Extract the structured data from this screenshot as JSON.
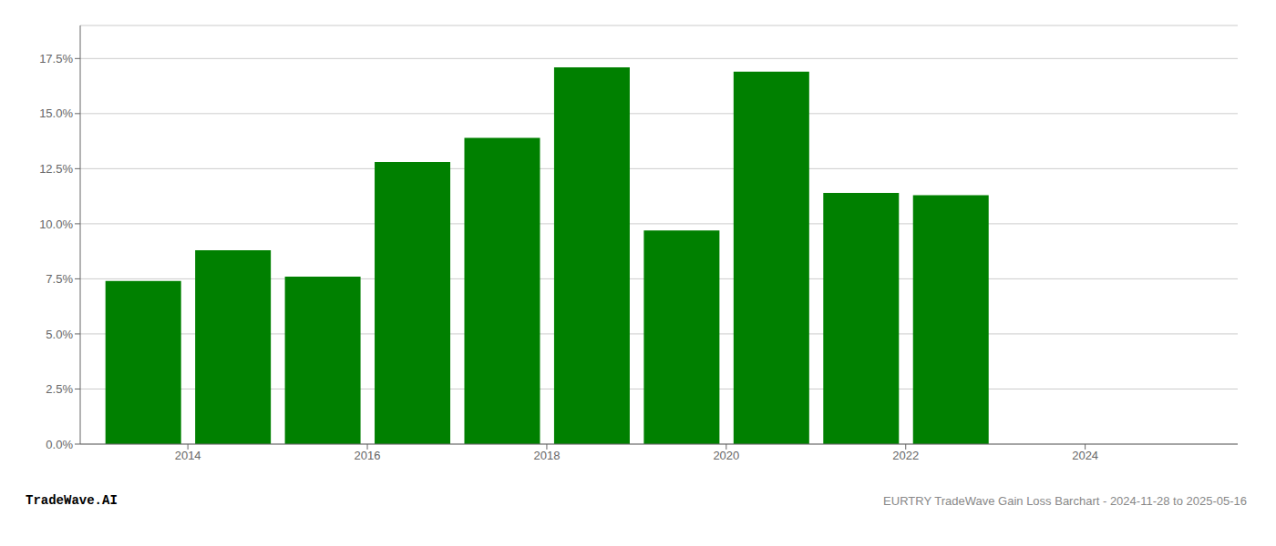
{
  "chart_data": {
    "type": "bar",
    "x": [
      2013,
      2014,
      2015,
      2016,
      2017,
      2018,
      2019,
      2020,
      2021,
      2022
    ],
    "values": [
      0.074,
      0.088,
      0.076,
      0.128,
      0.139,
      0.171,
      0.097,
      0.169,
      0.114,
      0.113
    ],
    "color": "#008000",
    "xlim": [
      2012.3,
      2025.2
    ],
    "xticks": [
      {
        "value": 2013.5,
        "label": "2014"
      },
      {
        "value": 2015.5,
        "label": "2016"
      },
      {
        "value": 2017.5,
        "label": "2018"
      },
      {
        "value": 2019.5,
        "label": "2020"
      },
      {
        "value": 2021.5,
        "label": "2022"
      },
      {
        "value": 2023.5,
        "label": "2024"
      }
    ],
    "ylim": [
      0,
      0.19
    ],
    "yticks": [
      {
        "value": 0.0,
        "label": "0.0%"
      },
      {
        "value": 0.025,
        "label": "2.5%"
      },
      {
        "value": 0.05,
        "label": "5.0%"
      },
      {
        "value": 0.075,
        "label": "7.5%"
      },
      {
        "value": 0.1,
        "label": "10.0%"
      },
      {
        "value": 0.125,
        "label": "12.5%"
      },
      {
        "value": 0.15,
        "label": "15.0%"
      },
      {
        "value": 0.175,
        "label": "17.5%"
      }
    ],
    "grid": true,
    "annotations": [
      "TradeWave.AI",
      "EURTRY TradeWave Gain Loss Barchart - 2024-11-28 to 2025-05-16"
    ]
  }
}
